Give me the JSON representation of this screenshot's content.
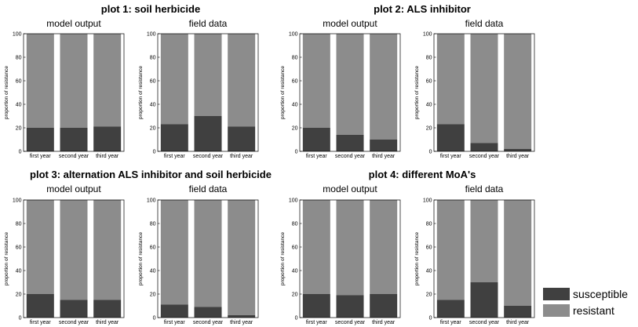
{
  "chart_data": [
    {
      "type": "bar",
      "title": "plot 1: soil herbicide",
      "panels": [
        {
          "subtitle": "model output",
          "ylabel": "proportion of resistance",
          "categories": [
            "first year",
            "second year",
            "third year"
          ],
          "ylim": [
            0,
            100
          ],
          "yticks": [
            0,
            20,
            40,
            60,
            80,
            100
          ],
          "series": [
            {
              "name": "susceptible",
              "values": [
                20,
                20,
                21
              ]
            },
            {
              "name": "resistant",
              "values": [
                80,
                80,
                79
              ]
            }
          ]
        },
        {
          "subtitle": "field data",
          "ylabel": "proportion of resistance",
          "categories": [
            "first year",
            "second year",
            "third year"
          ],
          "ylim": [
            0,
            100
          ],
          "yticks": [
            0,
            20,
            40,
            60,
            80,
            100
          ],
          "series": [
            {
              "name": "susceptible",
              "values": [
                23,
                30,
                21
              ]
            },
            {
              "name": "resistant",
              "values": [
                77,
                70,
                79
              ]
            }
          ]
        }
      ]
    },
    {
      "type": "bar",
      "title": "plot 2: ALS inhibitor",
      "panels": [
        {
          "subtitle": "model output",
          "ylabel": "proportion of resistance",
          "categories": [
            "first year",
            "second year",
            "third year"
          ],
          "ylim": [
            0,
            100
          ],
          "yticks": [
            0,
            20,
            40,
            60,
            80,
            100
          ],
          "series": [
            {
              "name": "susceptible",
              "values": [
                20,
                14,
                10
              ]
            },
            {
              "name": "resistant",
              "values": [
                80,
                86,
                90
              ]
            }
          ]
        },
        {
          "subtitle": "field data",
          "ylabel": "proportion of resistance",
          "categories": [
            "first year",
            "second year",
            "third year"
          ],
          "ylim": [
            0,
            100
          ],
          "yticks": [
            0,
            20,
            40,
            60,
            80,
            100
          ],
          "series": [
            {
              "name": "susceptible",
              "values": [
                23,
                7,
                2
              ]
            },
            {
              "name": "resistant",
              "values": [
                77,
                93,
                98
              ]
            }
          ]
        }
      ]
    },
    {
      "type": "bar",
      "title": "plot 3: alternation ALS inhibitor and soil herbicide",
      "panels": [
        {
          "subtitle": "model output",
          "ylabel": "proportion of resistance",
          "categories": [
            "first year",
            "second year",
            "third year"
          ],
          "ylim": [
            0,
            100
          ],
          "yticks": [
            0,
            20,
            40,
            60,
            80,
            100
          ],
          "series": [
            {
              "name": "susceptible",
              "values": [
                20,
                15,
                15
              ]
            },
            {
              "name": "resistant",
              "values": [
                80,
                85,
                85
              ]
            }
          ]
        },
        {
          "subtitle": "field data",
          "ylabel": "proportion of resistance",
          "categories": [
            "first year",
            "second year",
            "third year"
          ],
          "ylim": [
            0,
            100
          ],
          "yticks": [
            0,
            20,
            40,
            60,
            80,
            100
          ],
          "series": [
            {
              "name": "susceptible",
              "values": [
                11,
                9,
                2
              ]
            },
            {
              "name": "resistant",
              "values": [
                89,
                91,
                98
              ]
            }
          ]
        }
      ]
    },
    {
      "type": "bar",
      "title": "plot 4: different MoA's",
      "panels": [
        {
          "subtitle": "model output",
          "ylabel": "proportion of resistance",
          "categories": [
            "first year",
            "second year",
            "third year"
          ],
          "ylim": [
            0,
            100
          ],
          "yticks": [
            0,
            20,
            40,
            60,
            80,
            100
          ],
          "series": [
            {
              "name": "susceptible",
              "values": [
                20,
                19,
                20
              ]
            },
            {
              "name": "resistant",
              "values": [
                80,
                81,
                80
              ]
            }
          ]
        },
        {
          "subtitle": "field data",
          "ylabel": "proportion of resistance",
          "categories": [
            "first year",
            "second year",
            "third year"
          ],
          "ylim": [
            0,
            100
          ],
          "yticks": [
            0,
            20,
            40,
            60,
            80,
            100
          ],
          "series": [
            {
              "name": "susceptible",
              "values": [
                15,
                30,
                10
              ]
            },
            {
              "name": "resistant",
              "values": [
                85,
                70,
                90
              ]
            }
          ]
        }
      ]
    }
  ],
  "legend": {
    "placement": "bottom-right",
    "items": [
      {
        "label": "susceptible",
        "color": "#404040"
      },
      {
        "label": "resistant",
        "color": "#8c8c8c"
      }
    ]
  },
  "colors": {
    "susceptible": "#404040",
    "resistant": "#8c8c8c"
  }
}
